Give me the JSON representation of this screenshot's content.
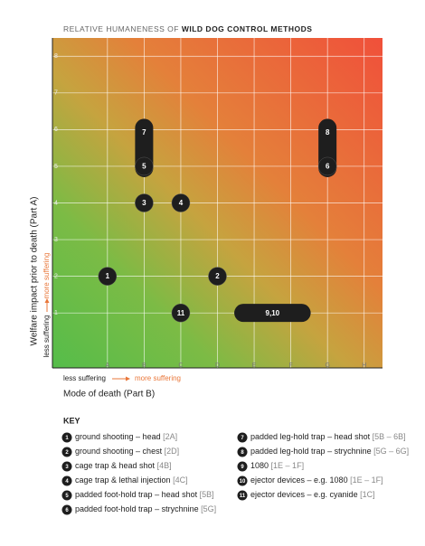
{
  "chart_data": {
    "type": "matrix",
    "title": "RELATIVE HUMANENESS OF",
    "title_bold": "WILD DOG CONTROL METHODS",
    "y_label": "Welfare impact prior to death (Part A)",
    "y_less": "less suffering",
    "y_more": "more suffering",
    "x_label": "Mode of death (Part B)",
    "x_less": "less suffering",
    "x_more": "more suffering",
    "xlim": [
      -0.5,
      8.5
    ],
    "ylim": [
      -0.5,
      8.5
    ],
    "xticks": [
      {
        "value": 1,
        "label": "A"
      },
      {
        "value": 2,
        "label": "B"
      },
      {
        "value": 3,
        "label": "C"
      },
      {
        "value": 4,
        "label": "D"
      },
      {
        "value": 5,
        "label": "E"
      },
      {
        "value": 6,
        "label": "F"
      },
      {
        "value": 7,
        "label": "G"
      },
      {
        "value": 8,
        "label": "H"
      }
    ],
    "yticks": [
      1,
      2,
      3,
      4,
      5,
      6,
      7,
      8
    ],
    "grid": true,
    "markers": [
      {
        "label": "7",
        "x": 2,
        "y": [
          5,
          6
        ]
      },
      {
        "label": "8",
        "x": 7,
        "y": [
          5,
          6
        ]
      },
      {
        "label": "9,10",
        "x": [
          5,
          6
        ],
        "y": 1
      },
      {
        "label": "5",
        "x": 2,
        "y": 5
      },
      {
        "label": "6",
        "x": 7,
        "y": 5
      },
      {
        "label": "1",
        "x": 1,
        "y": 2
      },
      {
        "label": "2",
        "x": 4,
        "y": 2
      },
      {
        "label": "3",
        "x": 2,
        "y": 4
      },
      {
        "label": "4",
        "x": 3,
        "y": 4
      },
      {
        "label": "11",
        "x": 3,
        "y": 1
      }
    ],
    "key_title": "KEY",
    "key": [
      {
        "num": "1",
        "text": "ground shooting – head",
        "code": "[2A]"
      },
      {
        "num": "2",
        "text": "ground shooting – chest",
        "code": "[2D]"
      },
      {
        "num": "3",
        "text": "cage trap & head shot",
        "code": "[4B]"
      },
      {
        "num": "4",
        "text": "cage trap & lethal injection",
        "code": "[4C]"
      },
      {
        "num": "5",
        "text": "padded foot-hold trap – head shot",
        "code": "[5B]"
      },
      {
        "num": "6",
        "text": "padded foot-hold trap – strychnine",
        "code": "[5G]"
      },
      {
        "num": "7",
        "text": "padded leg-hold trap – head shot",
        "code": "[5B – 6B]"
      },
      {
        "num": "8",
        "text": "padded leg-hold trap – strychnine",
        "code": "[5G – 6G]"
      },
      {
        "num": "9",
        "text": "1080",
        "code": "[1E – 1F]"
      },
      {
        "num": "10",
        "text": "ejector devices – e.g. 1080",
        "code": "[1E – 1F]"
      },
      {
        "num": "11",
        "text": "ejector devices – e.g. cyanide",
        "code": "[1C]"
      }
    ]
  }
}
